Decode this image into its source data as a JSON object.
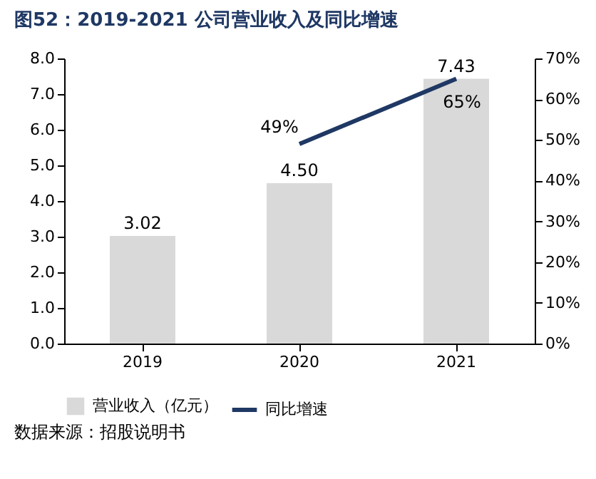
{
  "chart_data": {
    "type": "bar",
    "title": "图52：2019-2021 公司营业收入及同比增速",
    "categories": [
      "2019",
      "2020",
      "2021"
    ],
    "series": [
      {
        "name": "营业收入（亿元）",
        "type": "bar",
        "color": "#d9d9d9",
        "values": [
          3.02,
          4.5,
          7.43
        ],
        "value_labels": [
          "3.02",
          "4.50",
          "7.43"
        ]
      },
      {
        "name": "同比增速",
        "type": "line",
        "axis": "y2",
        "color": "#1f3864",
        "values": [
          null,
          49,
          65
        ],
        "value_labels": [
          null,
          "49%",
          "65%"
        ]
      }
    ],
    "ylim": [
      0,
      8
    ],
    "yticks": [
      {
        "value": 0,
        "label": "0.0"
      },
      {
        "value": 1,
        "label": "1.0"
      },
      {
        "value": 2,
        "label": "2.0"
      },
      {
        "value": 3,
        "label": "3.0"
      },
      {
        "value": 4,
        "label": "4.0"
      },
      {
        "value": 5,
        "label": "5.0"
      },
      {
        "value": 6,
        "label": "6.0"
      },
      {
        "value": 7,
        "label": "7.0"
      },
      {
        "value": 8,
        "label": "8.0"
      }
    ],
    "y2lim": [
      0,
      70
    ],
    "y2ticks": [
      {
        "value": 0,
        "label": "0%"
      },
      {
        "value": 10,
        "label": "10%"
      },
      {
        "value": 20,
        "label": "20%"
      },
      {
        "value": 30,
        "label": "30%"
      },
      {
        "value": 40,
        "label": "40%"
      },
      {
        "value": 50,
        "label": "50%"
      },
      {
        "value": 60,
        "label": "60%"
      },
      {
        "value": 70,
        "label": "70%"
      }
    ],
    "grid": false,
    "legend": "bottom",
    "marker": "none",
    "line_style": "solid",
    "annotations": [
      "数据来源：招股说明书"
    ]
  }
}
